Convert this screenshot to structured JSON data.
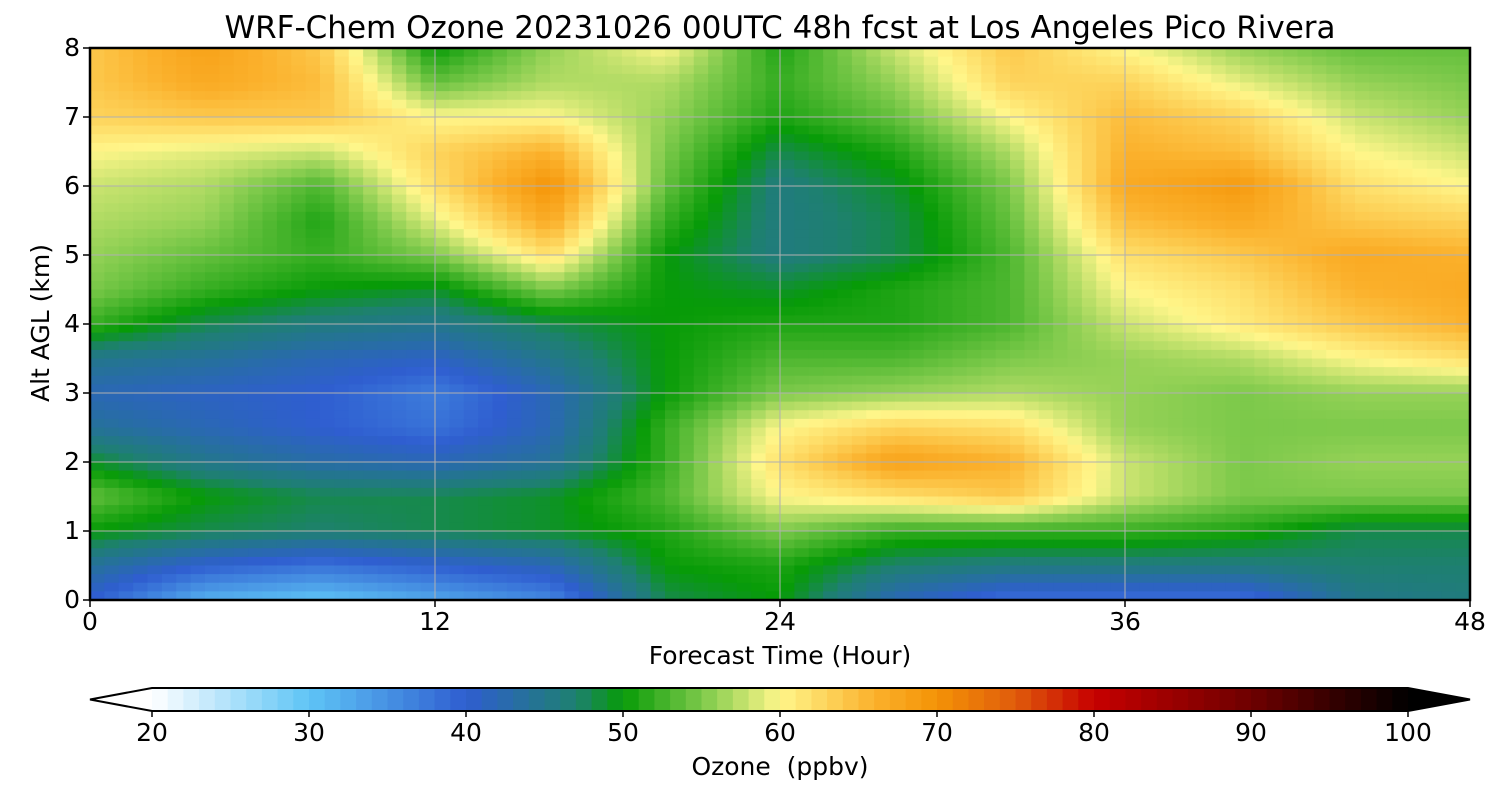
{
  "chart_data": {
    "type": "heatmap",
    "title": "WRF-Chem Ozone  20231026 00UTC 48h fcst at Los Angeles Pico Rivera",
    "xlabel": "Forecast Time (Hour)",
    "ylabel": "Alt AGL (km)",
    "xlim": [
      0,
      48
    ],
    "ylim": [
      0,
      8
    ],
    "xticks": [
      0,
      12,
      24,
      36,
      48
    ],
    "yticks": [
      0,
      1,
      2,
      3,
      4,
      5,
      6,
      7,
      8
    ],
    "grid": true,
    "x": [
      0,
      4,
      8,
      12,
      16,
      20,
      24,
      28,
      32,
      36,
      40,
      44,
      48
    ],
    "y": [
      0,
      0.5,
      1,
      1.5,
      2,
      2.5,
      3,
      3.5,
      4,
      4.5,
      5,
      5.5,
      6,
      6.5,
      7,
      7.5,
      8
    ],
    "z": [
      [
        40,
        32,
        30,
        33,
        36,
        48,
        50,
        42,
        38,
        38,
        38,
        45,
        46
      ],
      [
        44,
        40,
        38,
        40,
        42,
        50,
        51,
        47,
        46,
        46,
        46,
        47,
        47
      ],
      [
        50,
        48,
        47,
        48,
        49,
        51,
        55,
        52,
        52,
        52,
        51,
        48,
        48
      ],
      [
        54,
        50,
        48,
        48,
        49,
        53,
        60,
        62,
        64,
        58,
        55,
        55,
        55
      ],
      [
        49,
        45,
        43,
        42,
        44,
        52,
        62,
        68,
        66,
        58,
        55,
        56,
        56
      ],
      [
        44,
        42,
        40,
        38,
        42,
        52,
        60,
        63,
        62,
        56,
        55,
        55,
        55
      ],
      [
        42,
        41,
        40,
        37,
        42,
        50,
        55,
        56,
        57,
        56,
        55,
        56,
        56
      ],
      [
        45,
        44,
        42,
        41,
        45,
        50,
        53,
        53,
        55,
        56,
        57,
        60,
        62
      ],
      [
        52,
        48,
        46,
        45,
        48,
        50,
        51,
        51,
        53,
        58,
        61,
        64,
        66
      ],
      [
        55,
        52,
        50,
        49,
        55,
        50,
        49,
        51,
        53,
        60,
        62,
        66,
        67
      ],
      [
        56,
        54,
        52,
        55,
        62,
        50,
        46,
        48,
        53,
        62,
        64,
        67,
        66
      ],
      [
        57,
        56,
        51,
        59,
        67,
        52,
        46,
        48,
        54,
        65,
        67,
        64,
        63
      ],
      [
        58,
        57,
        53,
        62,
        70,
        54,
        46,
        49,
        55,
        67,
        69,
        62,
        60
      ],
      [
        60,
        59,
        58,
        63,
        66,
        55,
        48,
        51,
        57,
        66,
        65,
        60,
        58
      ],
      [
        63,
        64,
        64,
        60,
        60,
        56,
        51,
        54,
        60,
        65,
        63,
        58,
        56
      ],
      [
        64,
        67,
        65,
        54,
        57,
        57,
        52,
        56,
        63,
        63,
        59,
        56,
        55
      ],
      [
        64,
        68,
        64,
        50,
        56,
        60,
        51,
        58,
        64,
        60,
        56,
        54,
        54
      ]
    ],
    "colorbar": {
      "label": "Ozone  (ppbv)",
      "range": [
        20,
        100
      ],
      "ticks": [
        20,
        30,
        40,
        50,
        60,
        70,
        80,
        90,
        100
      ],
      "extend": "both",
      "stops": [
        {
          "value": 20,
          "color": "#ffffff"
        },
        {
          "value": 30,
          "color": "#5ec4f6"
        },
        {
          "value": 40,
          "color": "#2f5ed0"
        },
        {
          "value": 47,
          "color": "#1e8070"
        },
        {
          "value": 50,
          "color": "#079b07"
        },
        {
          "value": 55,
          "color": "#7cc94a"
        },
        {
          "value": 60,
          "color": "#fff68a"
        },
        {
          "value": 66,
          "color": "#fbb12c"
        },
        {
          "value": 70,
          "color": "#f49306"
        },
        {
          "value": 75,
          "color": "#e05b0b"
        },
        {
          "value": 80,
          "color": "#c60000"
        },
        {
          "value": 90,
          "color": "#6e0000"
        },
        {
          "value": 100,
          "color": "#000000"
        }
      ]
    }
  }
}
